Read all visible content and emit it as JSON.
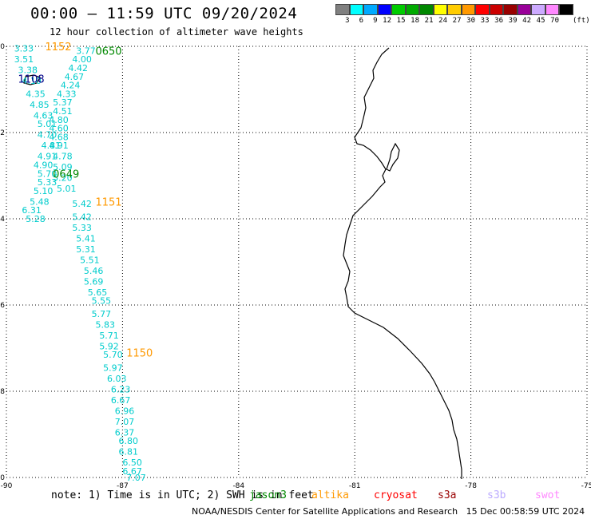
{
  "header": {
    "title": "00:00 – 11:59 UTC 09/20/2024",
    "subtitle": "12 hour collection of altimeter wave heights"
  },
  "legend": {
    "colors": [
      "#808080",
      "#00ffff",
      "#00aaff",
      "#0000ff",
      "#00cc00",
      "#00aa00",
      "#008800",
      "#ffff00",
      "#ffcc00",
      "#ff9900",
      "#ff0000",
      "#cc0000",
      "#990000",
      "#990099",
      "#ccaaff",
      "#ff88ff",
      "#000000"
    ],
    "labels": [
      "3",
      "6",
      "9",
      "12",
      "15",
      "18",
      "21",
      "24",
      "27",
      "30",
      "33",
      "36",
      "39",
      "42",
      "45",
      "70"
    ],
    "unit": "(ft)"
  },
  "map": {
    "lon_range": [
      -90,
      -75
    ],
    "lat_range": [
      -10,
      0
    ],
    "x_tick_labels": [
      "-90",
      "-87",
      "-84",
      "-81",
      "-78",
      "-75"
    ],
    "y_tick_labels": [
      "0",
      "-2",
      "-4",
      "-6",
      "-8",
      "-10"
    ],
    "coastline_color": "#000000",
    "grid": "dotted"
  },
  "chart_data": {
    "type": "scatter",
    "x_axis": "longitude",
    "y_axis": "latitude",
    "track_color": "#00cccc",
    "readings": [
      {
        "lon": -89.8,
        "lat": -0.05,
        "value": "3.33"
      },
      {
        "lon": -89.8,
        "lat": -0.3,
        "value": "3.51"
      },
      {
        "lon": -89.7,
        "lat": -0.55,
        "value": "3.38"
      },
      {
        "lon": -89.6,
        "lat": -0.8,
        "value": "4.10"
      },
      {
        "lon": -89.5,
        "lat": -1.1,
        "value": "4.35"
      },
      {
        "lon": -89.4,
        "lat": -1.35,
        "value": "4.85"
      },
      {
        "lon": -89.3,
        "lat": -1.6,
        "value": "4.63"
      },
      {
        "lon": -89.2,
        "lat": -1.8,
        "value": "5.01"
      },
      {
        "lon": -89.2,
        "lat": -2.05,
        "value": "4.70"
      },
      {
        "lon": -89.1,
        "lat": -2.3,
        "value": "4.81"
      },
      {
        "lon": -89.2,
        "lat": -2.55,
        "value": "4.91"
      },
      {
        "lon": -89.3,
        "lat": -2.75,
        "value": "4.90"
      },
      {
        "lon": -89.2,
        "lat": -2.95,
        "value": "5.70"
      },
      {
        "lon": -89.2,
        "lat": -3.15,
        "value": "5.33"
      },
      {
        "lon": -89.3,
        "lat": -3.35,
        "value": "5.10"
      },
      {
        "lon": -89.4,
        "lat": -3.6,
        "value": "5.48"
      },
      {
        "lon": -89.6,
        "lat": -3.8,
        "value": "6.31"
      },
      {
        "lon": -89.5,
        "lat": -4.0,
        "value": "5.28"
      },
      {
        "lon": -88.2,
        "lat": -0.1,
        "value": "3.77"
      },
      {
        "lon": -88.3,
        "lat": -0.3,
        "value": "4.00"
      },
      {
        "lon": -88.4,
        "lat": -0.5,
        "value": "4.42"
      },
      {
        "lon": -88.5,
        "lat": -0.7,
        "value": "4.67"
      },
      {
        "lon": -88.6,
        "lat": -0.9,
        "value": "4.24"
      },
      {
        "lon": -88.7,
        "lat": -1.1,
        "value": "4.33"
      },
      {
        "lon": -88.8,
        "lat": -1.3,
        "value": "5.37"
      },
      {
        "lon": -88.8,
        "lat": -1.5,
        "value": "4.51"
      },
      {
        "lon": -88.9,
        "lat": -1.7,
        "value": "4.80"
      },
      {
        "lon": -88.9,
        "lat": -1.9,
        "value": "4.60"
      },
      {
        "lon": -88.9,
        "lat": -2.1,
        "value": "4.68"
      },
      {
        "lon": -88.9,
        "lat": -2.3,
        "value": "4.91"
      },
      {
        "lon": -88.8,
        "lat": -2.55,
        "value": "4.78"
      },
      {
        "lon": -88.8,
        "lat": -2.8,
        "value": "5.09"
      },
      {
        "lon": -88.8,
        "lat": -3.05,
        "value": "5.20"
      },
      {
        "lon": -88.7,
        "lat": -3.3,
        "value": "5.01"
      },
      {
        "lon": -88.3,
        "lat": -3.65,
        "value": "5.42"
      },
      {
        "lon": -88.3,
        "lat": -3.95,
        "value": "5.42"
      },
      {
        "lon": -88.3,
        "lat": -4.2,
        "value": "5.33"
      },
      {
        "lon": -88.2,
        "lat": -4.45,
        "value": "5.41"
      },
      {
        "lon": -88.2,
        "lat": -4.7,
        "value": "5.31"
      },
      {
        "lon": -88.1,
        "lat": -4.95,
        "value": "5.51"
      },
      {
        "lon": -88.0,
        "lat": -5.2,
        "value": "5.46"
      },
      {
        "lon": -88.0,
        "lat": -5.45,
        "value": "5.69"
      },
      {
        "lon": -87.9,
        "lat": -5.7,
        "value": "5.65"
      },
      {
        "lon": -87.8,
        "lat": -5.9,
        "value": "5.55"
      },
      {
        "lon": -87.8,
        "lat": -6.2,
        "value": "5.77"
      },
      {
        "lon": -87.7,
        "lat": -6.45,
        "value": "5.83"
      },
      {
        "lon": -87.6,
        "lat": -6.7,
        "value": "5.71"
      },
      {
        "lon": -87.6,
        "lat": -6.95,
        "value": "5.92"
      },
      {
        "lon": -87.5,
        "lat": -7.15,
        "value": "5.70"
      },
      {
        "lon": -87.5,
        "lat": -7.45,
        "value": "5.97"
      },
      {
        "lon": -87.4,
        "lat": -7.7,
        "value": "6.03"
      },
      {
        "lon": -87.3,
        "lat": -7.95,
        "value": "6.23"
      },
      {
        "lon": -87.3,
        "lat": -8.2,
        "value": "6.67"
      },
      {
        "lon": -87.2,
        "lat": -8.45,
        "value": "6.96"
      },
      {
        "lon": -87.2,
        "lat": -8.7,
        "value": "7.07"
      },
      {
        "lon": -87.2,
        "lat": -8.95,
        "value": "6.37"
      },
      {
        "lon": -87.1,
        "lat": -9.15,
        "value": "6.80"
      },
      {
        "lon": -87.1,
        "lat": -9.4,
        "value": "6.81"
      },
      {
        "lon": -87.0,
        "lat": -9.65,
        "value": "6.50"
      },
      {
        "lon": -87.0,
        "lat": -9.85,
        "value": "6.67"
      },
      {
        "lon": -86.9,
        "lat": -10.0,
        "value": "7.07"
      }
    ],
    "time_labels": [
      {
        "lon": -89.0,
        "lat": -0.0,
        "value": "1152",
        "color": "#ff9900"
      },
      {
        "lon": -87.7,
        "lat": -0.1,
        "value": "0650",
        "color": "#008800"
      },
      {
        "lon": -89.7,
        "lat": -0.75,
        "value": "1108",
        "color": "#000088"
      },
      {
        "lon": -88.8,
        "lat": -2.95,
        "value": "0649",
        "color": "#008800"
      },
      {
        "lon": -87.7,
        "lat": -3.6,
        "value": "1151",
        "color": "#ff9900"
      },
      {
        "lon": -86.9,
        "lat": -7.1,
        "value": "1150",
        "color": "#ff9900"
      }
    ]
  },
  "notes": "note: 1) Time is in UTC; 2) SWH is in feet",
  "satellites": [
    {
      "name": "jason3",
      "color": "#008800"
    },
    {
      "name": "altika",
      "color": "#ff9900"
    },
    {
      "name": "cryosat",
      "color": "#ff0000"
    },
    {
      "name": "s3a",
      "color": "#990000"
    },
    {
      "name": "s3b",
      "color": "#bbaaff"
    },
    {
      "name": "swot",
      "color": "#ff88ff"
    }
  ],
  "credit": "NOAA/NESDIS Center for Satellite Applications and Research   15 Dec 00:58:59 UTC 2024"
}
